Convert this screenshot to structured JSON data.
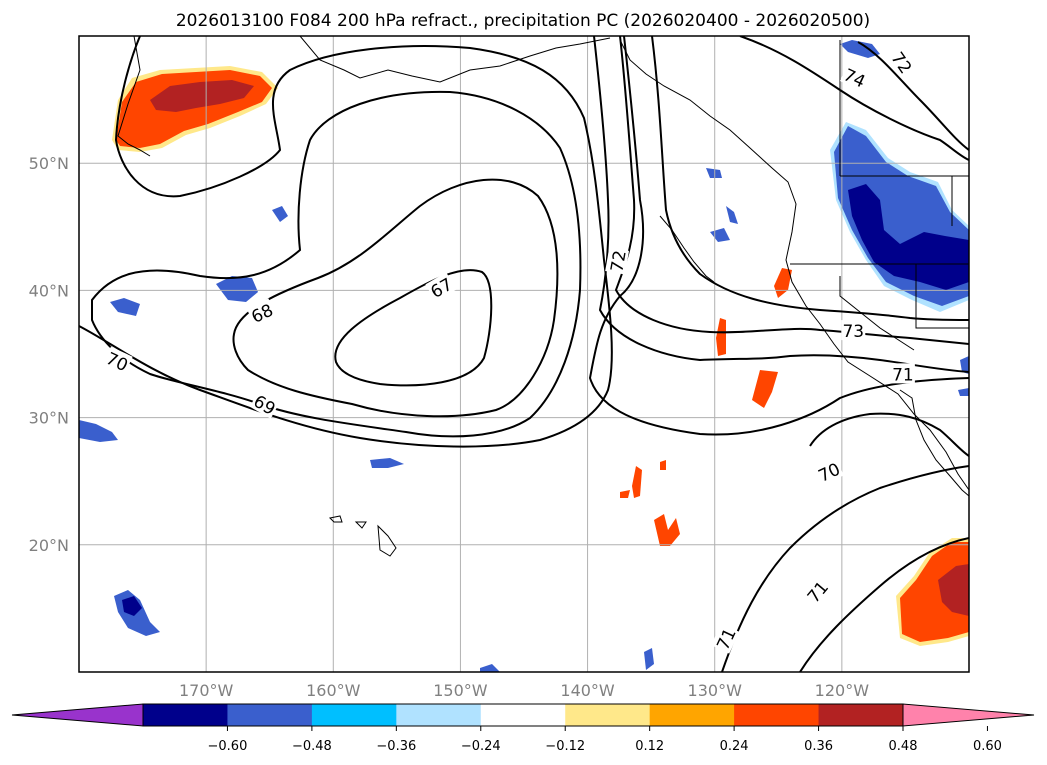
{
  "chart_data": {
    "type": "contour-map",
    "title": "2026013100 F084 200 hPa refract., precipitation PC (2026020400 - 2026020500)",
    "xlim": [
      -180,
      -110
    ],
    "ylim": [
      10,
      60
    ],
    "lat_ticks": [
      {
        "value": 20,
        "label": "20°N"
      },
      {
        "value": 30,
        "label": "30°N"
      },
      {
        "value": 40,
        "label": "40°N"
      },
      {
        "value": 50,
        "label": "50°N"
      }
    ],
    "lon_ticks": [
      {
        "value": -170,
        "label": "170°W"
      },
      {
        "value": -160,
        "label": "160°W"
      },
      {
        "value": -150,
        "label": "150°W"
      },
      {
        "value": -140,
        "label": "140°W"
      },
      {
        "value": -130,
        "label": "130°W"
      },
      {
        "value": -120,
        "label": "120°W"
      }
    ],
    "contour_levels": [
      67,
      68,
      69,
      70,
      71,
      72,
      73,
      74
    ],
    "contour_labels": [
      {
        "text": "67",
        "lon": -151.5,
        "lat": 40.2,
        "angle": -30
      },
      {
        "text": "68",
        "lon": -165.6,
        "lat": 38.2,
        "angle": -25
      },
      {
        "text": "69",
        "lon": -165.4,
        "lat": 31.0,
        "angle": 30
      },
      {
        "text": "70",
        "lon": -177.0,
        "lat": 34.4,
        "angle": 25
      },
      {
        "text": "72",
        "lon": -137.6,
        "lat": 42.3,
        "angle": -80
      },
      {
        "text": "74",
        "lon": -119.0,
        "lat": 56.7,
        "angle": 25
      },
      {
        "text": "72",
        "lon": -115.3,
        "lat": 57.9,
        "angle": 55
      },
      {
        "text": "73",
        "lon": -119.1,
        "lat": 36.8,
        "angle": 0
      },
      {
        "text": "71",
        "lon": -115.2,
        "lat": 33.4,
        "angle": 0
      },
      {
        "text": "70",
        "lon": -121.0,
        "lat": 25.7,
        "angle": -25
      },
      {
        "text": "71",
        "lon": -121.9,
        "lat": 16.3,
        "angle": -50
      },
      {
        "text": "71",
        "lon": -129.1,
        "lat": 12.6,
        "angle": -65
      }
    ],
    "colorbar": {
      "ticks": [
        "−0.60",
        "−0.48",
        "−0.36",
        "−0.24",
        "−0.12",
        "0.12",
        "0.24",
        "0.36",
        "0.48",
        "0.60"
      ],
      "colors": [
        "#9933cc",
        "#00008b",
        "#3a5fcd",
        "#00bfff",
        "#b0e2ff",
        "#ffffff",
        "#ffe88a",
        "#ffa500",
        "#ff4500",
        "#b22222",
        "#ff82ab"
      ]
    },
    "xlabel": "",
    "ylabel": ""
  }
}
